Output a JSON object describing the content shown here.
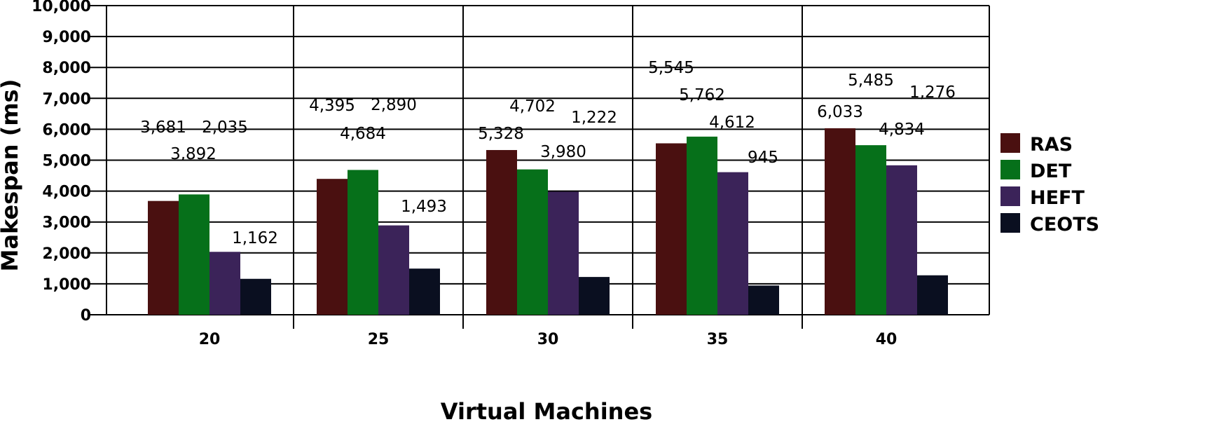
{
  "chart_data": {
    "type": "bar",
    "title": "",
    "xlabel": "Virtual Machines",
    "ylabel": "Makespan (ms)",
    "categories": [
      "20",
      "25",
      "30",
      "35",
      "40"
    ],
    "ylim": [
      0,
      10000
    ],
    "yticks": [
      "0",
      "1,000",
      "2,000",
      "3,000",
      "4,000",
      "5,000",
      "6,000",
      "7,000",
      "8,000",
      "9,000",
      "10,000"
    ],
    "grid": true,
    "legend_position": "right",
    "series": [
      {
        "name": "RAS",
        "color": "#4a1010",
        "values": [
          3681,
          4395,
          5328,
          5545,
          6033
        ],
        "labels": [
          "3,681",
          "4,395",
          "5,328",
          "5,545",
          "6,033"
        ]
      },
      {
        "name": "DET",
        "color": "#06701a",
        "values": [
          3892,
          4684,
          4702,
          5762,
          5485
        ],
        "labels": [
          "3,892",
          "4,684",
          "4,702",
          "5,762",
          "5,485"
        ]
      },
      {
        "name": "HEFT",
        "color": "#3b2359",
        "values": [
          2035,
          2890,
          3980,
          4612,
          4834
        ],
        "labels": [
          "2,035",
          "2,890",
          "3,980",
          "4,612",
          "4,834"
        ]
      },
      {
        "name": "CEOTS",
        "color": "#0a0f20",
        "values": [
          1162,
          1493,
          1222,
          945,
          1276
        ],
        "labels": [
          "1,162",
          "1,493",
          "1,222",
          "945",
          "1,276"
        ]
      }
    ]
  }
}
